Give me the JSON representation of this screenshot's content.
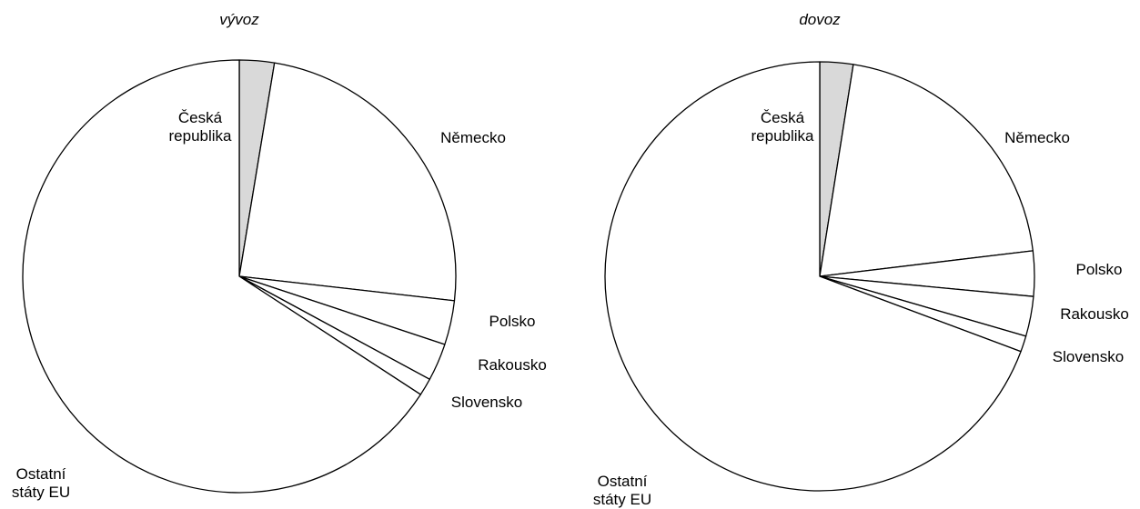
{
  "chart_data": [
    {
      "type": "pie",
      "title": "vývoz",
      "categories": [
        "Česká republika",
        "Německo",
        "Polsko",
        "Rakousko",
        "Slovensko",
        "Ostatní státy EU"
      ],
      "values": [
        2.6,
        24.2,
        3.3,
        2.8,
        1.3,
        65.8
      ],
      "colors": [
        "#d9d9d9",
        "#ffffff",
        "#ffffff",
        "#ffffff",
        "#ffffff",
        "#ffffff"
      ]
    },
    {
      "type": "pie",
      "title": "dovoz",
      "categories": [
        "Česká republika",
        "Německo",
        "Polsko",
        "Rakousko",
        "Slovensko",
        "Ostatní státy EU"
      ],
      "values": [
        2.5,
        20.6,
        3.4,
        3.0,
        1.2,
        69.3
      ],
      "colors": [
        "#d9d9d9",
        "#ffffff",
        "#ffffff",
        "#ffffff",
        "#ffffff",
        "#ffffff"
      ]
    }
  ]
}
